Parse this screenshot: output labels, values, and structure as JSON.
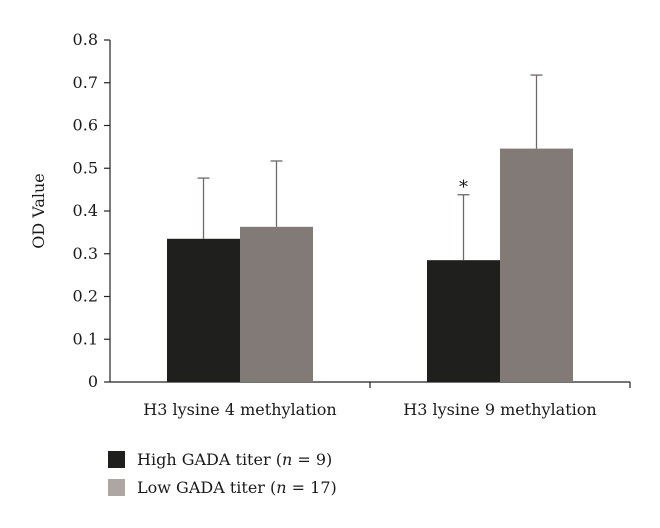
{
  "chart_data": {
    "type": "bar",
    "categories": [
      "H3 lysine 4 methylation",
      "H3 lysine 9 methylation"
    ],
    "ylabel": "OD Value",
    "xlabel": "",
    "ylim": [
      0,
      0.8
    ],
    "yticks": [
      "0",
      "0.1",
      "0.2",
      "0.3",
      "0.4",
      "0.5",
      "0.6",
      "0.7",
      "0.8"
    ],
    "grid": false,
    "legend_position": "bottom-left",
    "series": [
      {
        "name": "High GADA titer (n = 9)",
        "name_parts": {
          "prefix": "High GADA titer (",
          "italic": "n",
          "suffix": " = 9)"
        },
        "color": "#1f1f1d",
        "values": [
          0.335,
          0.285
        ],
        "error_upper": [
          0.477,
          0.438
        ],
        "annotations": [
          "",
          "*"
        ]
      },
      {
        "name": "Low GADA titer (n = 17)",
        "name_parts": {
          "prefix": "Low GADA titer (",
          "italic": "n",
          "suffix": " = 17)"
        },
        "color": "#827a76",
        "legend_color": "#ada7a4",
        "values": [
          0.363,
          0.546
        ],
        "error_upper": [
          0.517,
          0.718
        ],
        "annotations": [
          "",
          ""
        ]
      }
    ]
  }
}
